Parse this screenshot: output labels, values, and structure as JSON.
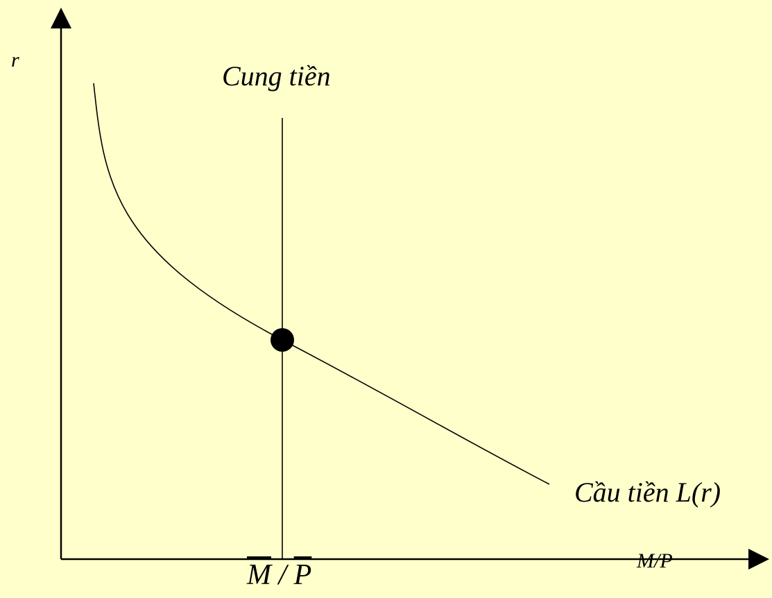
{
  "colors": {
    "background": "#FFFFCC",
    "ink": "#000000"
  },
  "labels": {
    "y_axis": "r",
    "x_axis": "M/P",
    "supply_curve": "Cung tiền",
    "demand_curve": "Cầu tiền L(r)",
    "x_tick_numerator": "M",
    "x_tick_separator": " / ",
    "x_tick_denominator": "P"
  },
  "diagram": {
    "type": "supply-demand",
    "curves": [
      {
        "name": "Cung tiền",
        "shape": "vertical line"
      },
      {
        "name": "Cầu tiền L(r)",
        "shape": "downward-sloping convex curve"
      }
    ],
    "equilibrium_marker": "filled circle"
  }
}
